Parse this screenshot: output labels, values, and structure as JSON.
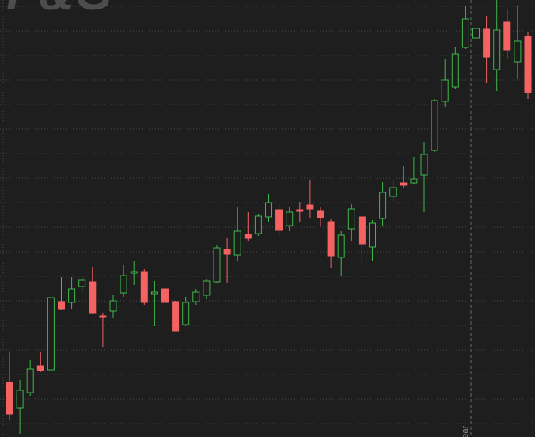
{
  "chart_data": {
    "type": "candlestick",
    "watermark": "P&G",
    "annotation": "Year",
    "open": [
      69,
      37,
      56,
      90,
      85,
      171,
      170,
      190,
      196,
      153,
      159,
      182,
      207,
      209,
      181,
      187,
      171,
      142,
      171,
      179,
      196,
      237,
      230,
      256,
      257,
      278,
      287,
      267,
      287,
      293,
      286,
      272,
      227,
      263,
      278,
      240,
      276,
      304,
      321,
      321,
      331,
      362,
      424,
      442,
      492,
      504,
      515,
      464,
      524,
      474,
      506
    ],
    "high": [
      107,
      72,
      97,
      107,
      177,
      202,
      202,
      204,
      215,
      157,
      180,
      217,
      222,
      212,
      197,
      192,
      172,
      177,
      187,
      200,
      242,
      252,
      290,
      284,
      282,
      307,
      294,
      290,
      297,
      324,
      290,
      275,
      260,
      294,
      282,
      274,
      322,
      324,
      342,
      354,
      372,
      427,
      477,
      492,
      544,
      547,
      532,
      552,
      540,
      544,
      512
    ],
    "low": [
      22,
      4,
      52,
      82,
      84,
      160,
      162,
      182,
      155,
      114,
      150,
      177,
      192,
      167,
      140,
      160,
      134,
      140,
      167,
      174,
      194,
      194,
      222,
      247,
      254,
      272,
      254,
      260,
      272,
      277,
      267,
      214,
      204,
      247,
      220,
      222,
      267,
      297,
      315,
      320,
      284,
      360,
      417,
      440,
      490,
      482,
      447,
      437,
      477,
      452,
      427
    ],
    "close": [
      29,
      59,
      86,
      84,
      176,
      162,
      187,
      198,
      157,
      151,
      172,
      204,
      209,
      170,
      183,
      170,
      134,
      170,
      183,
      197,
      239,
      231,
      260,
      251,
      279,
      296,
      261,
      284,
      285,
      288,
      277,
      229,
      255,
      288,
      244,
      270,
      309,
      315,
      318,
      326,
      357,
      425,
      451,
      484,
      528,
      516,
      480,
      514,
      489,
      500,
      435
    ],
    "up_color": "#3fb84a",
    "down_color": "#f46262",
    "ylim": [
      0,
      552
    ],
    "yticks": [
      17,
      48,
      79,
      110,
      141,
      172,
      203,
      234,
      265,
      296,
      327,
      358,
      389,
      420,
      451,
      482,
      513,
      544
    ],
    "grid": true
  }
}
